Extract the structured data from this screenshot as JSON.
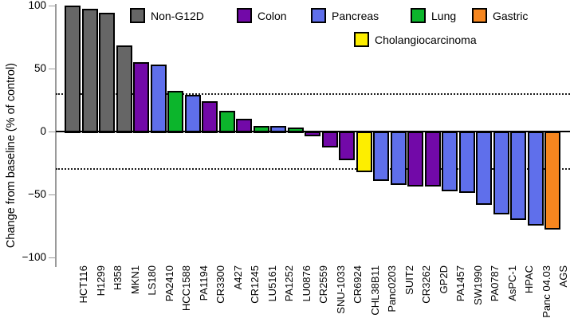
{
  "chart_data": {
    "type": "bar",
    "title": "",
    "ylabel": "Change from baseline (% of control)",
    "ylim": [
      -100,
      100
    ],
    "yticks": [
      {
        "value": 100,
        "label": "100"
      },
      {
        "value": 50,
        "label": "50"
      },
      {
        "value": 0,
        "label": "0"
      },
      {
        "value": -50,
        "label": "−50"
      },
      {
        "value": -100,
        "label": "−100"
      }
    ],
    "reference_dotted_lines": [
      30,
      -30
    ],
    "grid": "off",
    "legend_position": "top-inside",
    "bars": [
      {
        "label": "HCT116",
        "group": "Non-G12D",
        "value": 99
      },
      {
        "label": "H1299",
        "group": "Non-G12D",
        "value": 96
      },
      {
        "label": "H358",
        "group": "Non-G12D",
        "value": 93
      },
      {
        "label": "MKN1",
        "group": "Non-G12D",
        "value": 67
      },
      {
        "label": "LS180",
        "group": "Colon",
        "value": 54
      },
      {
        "label": "PA2410",
        "group": "Pancreas",
        "value": 52
      },
      {
        "label": "HCC1588",
        "group": "Lung",
        "value": 31
      },
      {
        "label": "PA1194",
        "group": "Pancreas",
        "value": 28
      },
      {
        "label": "CR3300",
        "group": "Colon",
        "value": 23
      },
      {
        "label": "A427",
        "group": "Lung",
        "value": 15
      },
      {
        "label": "CR1245",
        "group": "Colon",
        "value": 9
      },
      {
        "label": "LU5161",
        "group": "Lung",
        "value": 3
      },
      {
        "label": "PA1252",
        "group": "Pancreas",
        "value": 3
      },
      {
        "label": "LU0876",
        "group": "Lung",
        "value": 2
      },
      {
        "label": "CR2559",
        "group": "Colon",
        "value": -1
      },
      {
        "label": "SNU-1033",
        "group": "Colon",
        "value": -10
      },
      {
        "label": "CR6924",
        "group": "Colon",
        "value": -20
      },
      {
        "label": "CHL38B11",
        "group": "Cholangiocarcinoma",
        "value": -30
      },
      {
        "label": "Panc0203",
        "group": "Pancreas",
        "value": -37
      },
      {
        "label": "SUIT2",
        "group": "Pancreas",
        "value": -40
      },
      {
        "label": "CR3262",
        "group": "Colon",
        "value": -41
      },
      {
        "label": "GP2D",
        "group": "Colon",
        "value": -41
      },
      {
        "label": "PA1457",
        "group": "Pancreas",
        "value": -45
      },
      {
        "label": "SW1990",
        "group": "Pancreas",
        "value": -46
      },
      {
        "label": "PA0787",
        "group": "Pancreas",
        "value": -56
      },
      {
        "label": "AsPC-1",
        "group": "Pancreas",
        "value": -63
      },
      {
        "label": "HPAC",
        "group": "Pancreas",
        "value": -68
      },
      {
        "label": "Panc 04.03",
        "group": "Pancreas",
        "value": -72
      },
      {
        "label": "AGS",
        "group": "Gastric",
        "value": -75
      }
    ]
  },
  "legend": {
    "items": [
      {
        "label": "Non-G12D",
        "color": "#666666"
      },
      {
        "label": "Colon",
        "color": "#7209a8"
      },
      {
        "label": "Pancreas",
        "color": "#5f6feb"
      },
      {
        "label": "Lung",
        "color": "#0cb52c"
      },
      {
        "label": "Gastric",
        "color": "#f6861f"
      },
      {
        "label": "Cholangiocarcinoma",
        "color": "#fdee00"
      }
    ]
  },
  "colors": {
    "axis": "#9a9a9a",
    "bar_outline": "#000000",
    "background": "#ffffff"
  }
}
